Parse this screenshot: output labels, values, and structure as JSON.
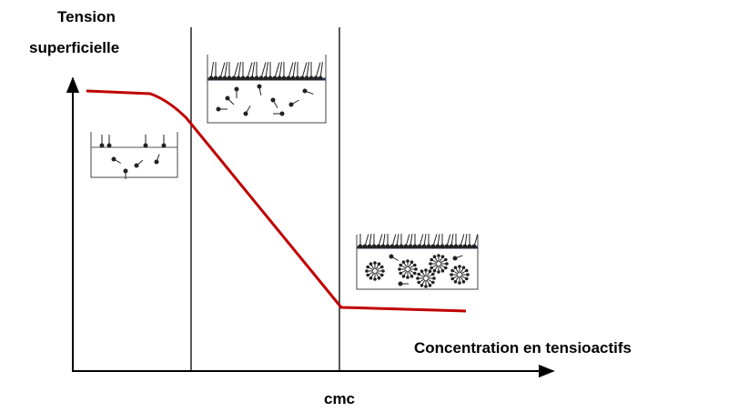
{
  "y_axis_label": {
    "lines": [
      "Tension",
      "superficielle"
    ]
  },
  "x_axis_label": "Concentration en tensioactifs",
  "cmc_label": "cmc"
}
